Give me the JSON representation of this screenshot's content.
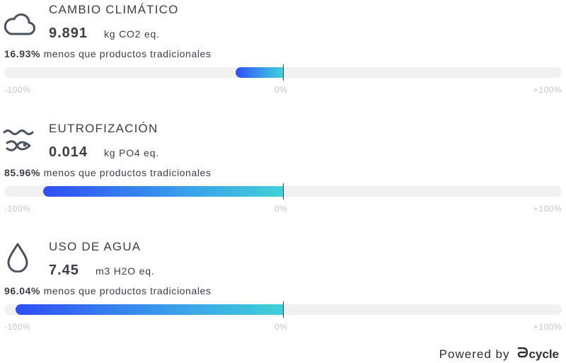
{
  "colors": {
    "text": "#3a3f47",
    "track": "#f1f1f1",
    "gradient_start": "#2f4ef5",
    "gradient_end": "#40d0d6",
    "scale_text": "#c4c4c4"
  },
  "metrics": [
    {
      "title": "CAMBIO CLIMÁTICO",
      "icon": "cloud-icon",
      "value": "9.891",
      "unit": "kg CO2 eq.",
      "percent": "16.93%",
      "summary_text": "menos que productos tradicionales",
      "reduction_fraction": 0.1693,
      "scale": {
        "min": "-100%",
        "mid": "0%",
        "max": "+100%"
      }
    },
    {
      "title": "EUTROFIZACIÓN",
      "icon": "fish-waves-icon",
      "value": "0.014",
      "unit": "kg PO4 eq.",
      "percent": "85.96%",
      "summary_text": "menos que productos tradicionales",
      "reduction_fraction": 0.8596,
      "scale": {
        "min": "-100%",
        "mid": "0%",
        "max": "+100%"
      }
    },
    {
      "title": "USO DE AGUA",
      "icon": "water-drop-icon",
      "value": "7.45",
      "unit": "m3 H2O eq.",
      "percent": "96.04%",
      "summary_text": "menos que productos tradicionales",
      "reduction_fraction": 0.9604,
      "scale": {
        "min": "-100%",
        "mid": "0%",
        "max": "+100%"
      }
    }
  ],
  "footer": {
    "powered_by": "Powered by",
    "brand": "cycle",
    "brand_icon": "dcycle-logo-icon"
  }
}
